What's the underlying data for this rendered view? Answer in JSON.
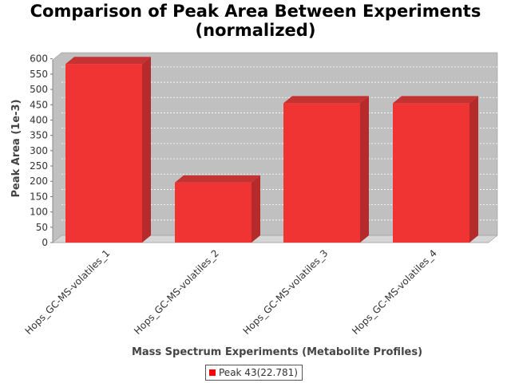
{
  "chart_data": {
    "type": "bar",
    "title_line1": "Comparison of Peak Area Between Experiments",
    "title_line2": "(normalized)",
    "xlabel": "Mass Spectrum Experiments (Metabolite Profiles)",
    "ylabel": "Peak Area (1e-3)",
    "categories": [
      "Hops_GC-MS-volatiles_1",
      "Hops_GC-MS-volatiles_2",
      "Hops_GC-MS-volatiles_3",
      "Hops_GC-MS-volatiles_4"
    ],
    "series": [
      {
        "name": "Peak 43(22.781)",
        "values": [
          583,
          196,
          455,
          455
        ],
        "color": "#ff0000"
      }
    ],
    "ylim": [
      0,
      620
    ],
    "yticks": [
      "0",
      "50",
      "100",
      "150",
      "200",
      "250",
      "300",
      "350",
      "400",
      "450",
      "500",
      "550",
      "600"
    ],
    "grid": true,
    "legend": "bottom-center",
    "style": "3d"
  }
}
